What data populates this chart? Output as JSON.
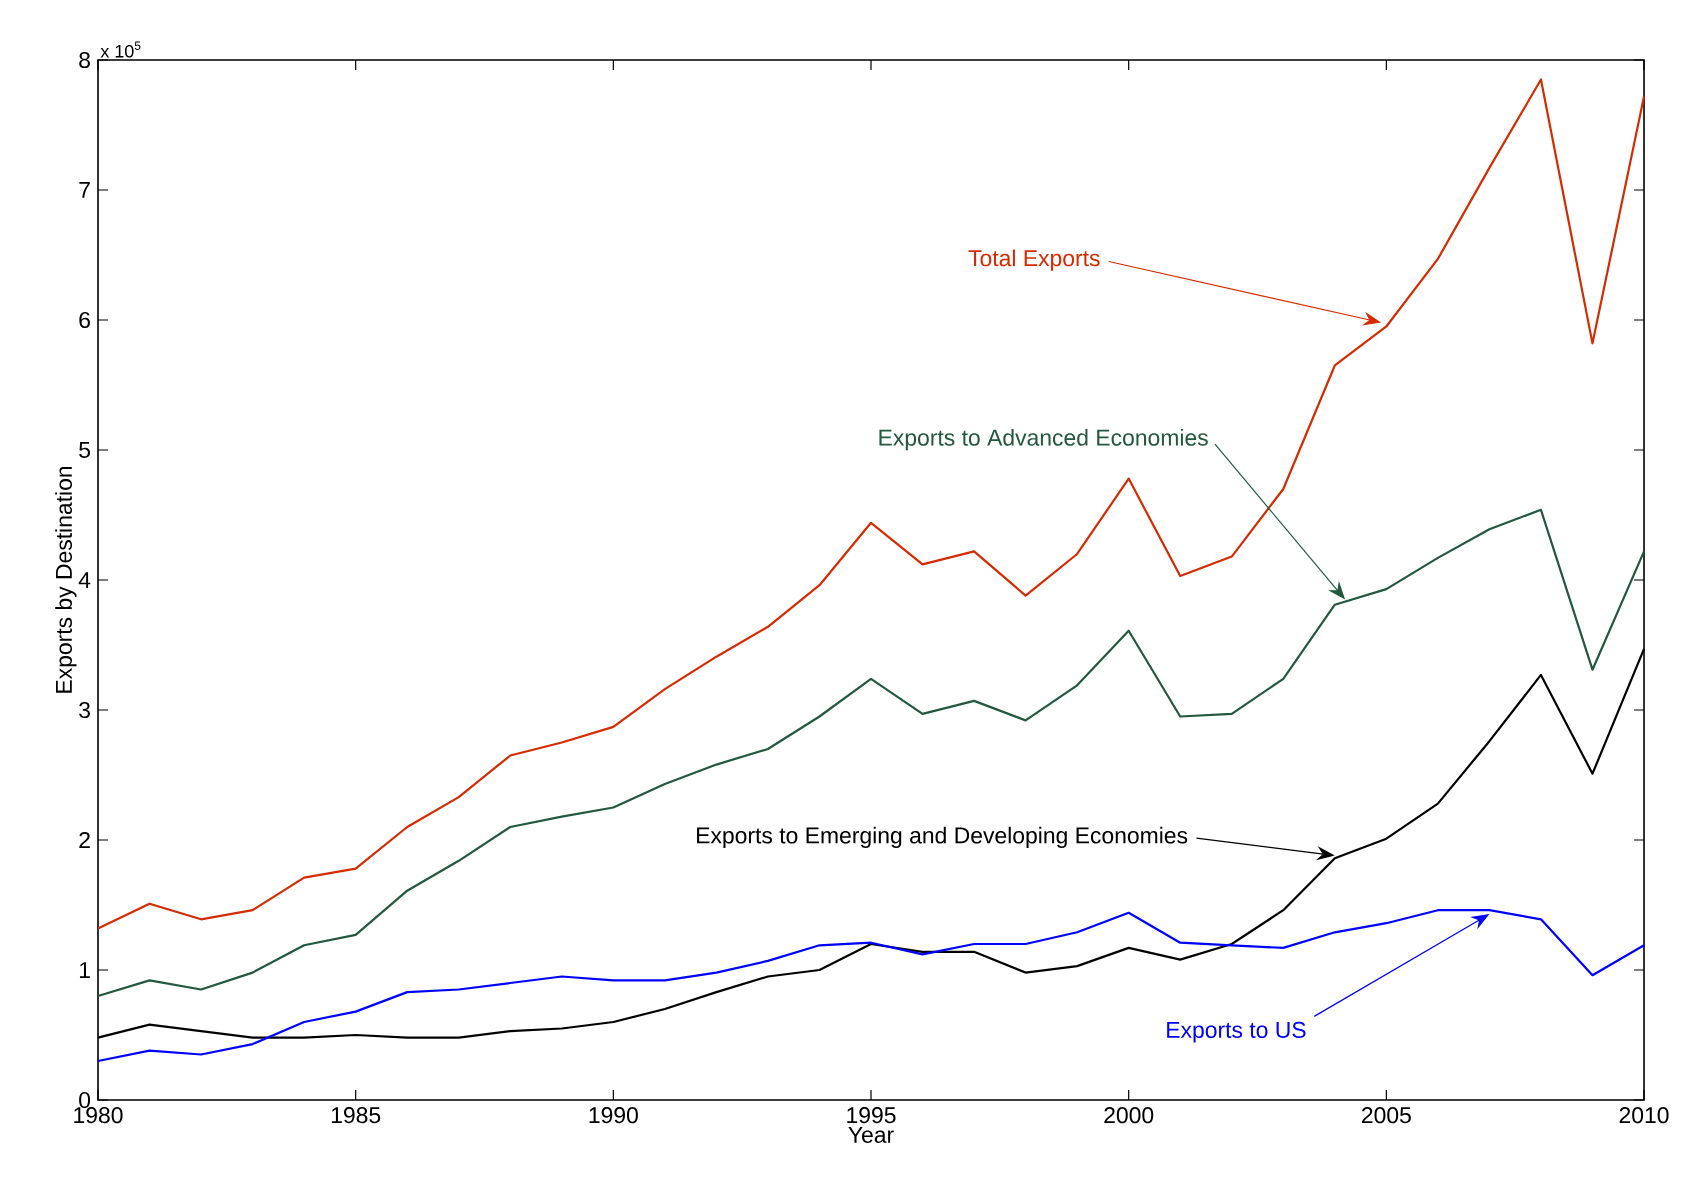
{
  "chart_data": {
    "type": "line",
    "xlabel": "Year",
    "ylabel": "Exports by Destination",
    "x": [
      1980,
      1981,
      1982,
      1983,
      1984,
      1985,
      1986,
      1987,
      1988,
      1989,
      1990,
      1991,
      1992,
      1993,
      1994,
      1995,
      1996,
      1997,
      1998,
      1999,
      2000,
      2001,
      2002,
      2003,
      2004,
      2005,
      2006,
      2007,
      2008,
      2009,
      2010
    ],
    "series": [
      {
        "name": "Total Exports",
        "color": "#d62a00",
        "values": [
          1.32,
          1.51,
          1.39,
          1.46,
          1.71,
          1.78,
          2.1,
          2.33,
          2.65,
          2.75,
          2.87,
          3.16,
          3.41,
          3.64,
          3.96,
          4.44,
          4.12,
          4.22,
          3.88,
          4.2,
          4.78,
          4.03,
          4.18,
          4.7,
          5.65,
          5.95,
          6.47,
          7.17,
          7.85,
          5.82,
          7.72
        ]
      },
      {
        "name": "Exports to Advanced Economies",
        "color": "#235840",
        "values": [
          0.8,
          0.92,
          0.85,
          0.98,
          1.19,
          1.27,
          1.61,
          1.84,
          2.1,
          2.18,
          2.25,
          2.43,
          2.58,
          2.7,
          2.95,
          3.24,
          2.97,
          3.07,
          2.92,
          3.19,
          3.61,
          2.95,
          2.97,
          3.24,
          3.81,
          3.93,
          4.17,
          4.39,
          4.54,
          3.31,
          4.22
        ]
      },
      {
        "name": "Exports to Emerging and Developing Economies",
        "color": "#000000",
        "values": [
          0.48,
          0.58,
          0.53,
          0.48,
          0.48,
          0.5,
          0.48,
          0.48,
          0.53,
          0.55,
          0.6,
          0.7,
          0.83,
          0.95,
          1.0,
          1.2,
          1.14,
          1.14,
          0.98,
          1.03,
          1.17,
          1.08,
          1.2,
          1.46,
          1.86,
          2.01,
          2.28,
          2.76,
          3.27,
          2.51,
          3.47
        ]
      },
      {
        "name": "Exports to US",
        "color": "#0000ff",
        "values": [
          0.3,
          0.38,
          0.35,
          0.43,
          0.6,
          0.68,
          0.83,
          0.85,
          0.9,
          0.95,
          0.92,
          0.92,
          0.98,
          1.07,
          1.19,
          1.21,
          1.12,
          1.2,
          1.2,
          1.29,
          1.44,
          1.21,
          1.19,
          1.17,
          1.29,
          1.36,
          1.46,
          1.46,
          1.39,
          0.96,
          1.19
        ]
      }
    ],
    "xlim": [
      1980,
      2010
    ],
    "xticks": [
      1980,
      1985,
      1990,
      1995,
      2000,
      2005,
      2010
    ],
    "ylim": [
      0,
      8
    ],
    "yticks": [
      0,
      1,
      2,
      3,
      4,
      5,
      6,
      7,
      8
    ],
    "annotations": [
      "x 10$^{5}$"
    ],
    "grid": false,
    "legend": false,
    "marker": "none",
    "line_style": "solid"
  }
}
